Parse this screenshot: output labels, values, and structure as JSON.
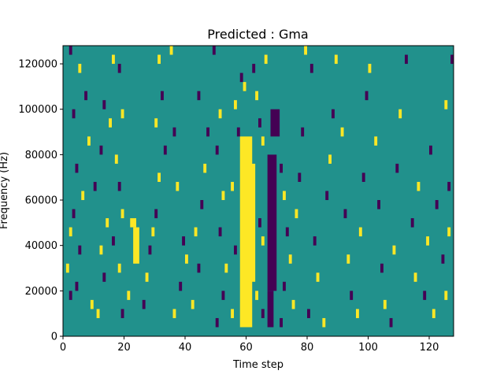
{
  "chart_data": {
    "type": "heatmap",
    "title": "Predicted : Gma",
    "xlabel": "Time step",
    "ylabel": "Frequency (Hz)",
    "xlim": [
      0,
      128
    ],
    "ylim": [
      0,
      128000
    ],
    "x_ticks": [
      0,
      20,
      40,
      60,
      80,
      100,
      120
    ],
    "x_tick_labels": [
      "0",
      "20",
      "40",
      "60",
      "80",
      "100",
      "120"
    ],
    "y_ticks": [
      0,
      20000,
      40000,
      60000,
      80000,
      100000,
      120000
    ],
    "y_tick_labels": [
      "0",
      "20000",
      "40000",
      "60000",
      "80000",
      "100000",
      "120000"
    ],
    "grid": false,
    "colormap": "viridis",
    "colors": {
      "low": "#440154",
      "mid": "#21918c",
      "high": "#fde725",
      "frame": "#000000"
    },
    "background_value": "mid",
    "bin_height_hz": 4000,
    "bands": [
      {
        "value": "high",
        "x_start": 58,
        "x_end": 62,
        "y_start": 4000,
        "y_end": 88000
      },
      {
        "value": "high",
        "x_start": 60,
        "x_end": 63,
        "y_start": 24000,
        "y_end": 76000
      },
      {
        "value": "low",
        "x_start": 67,
        "x_end": 70,
        "y_start": 20000,
        "y_end": 80000
      },
      {
        "value": "low",
        "x_start": 67,
        "x_end": 69,
        "y_start": 4000,
        "y_end": 20000
      },
      {
        "value": "low",
        "x_start": 68,
        "x_end": 71,
        "y_start": 88000,
        "y_end": 100000
      },
      {
        "value": "high",
        "x_start": 23,
        "x_end": 25,
        "y_start": 32000,
        "y_end": 48000
      },
      {
        "value": "high",
        "x_start": 22,
        "x_end": 24,
        "y_start": 48000,
        "y_end": 52000
      }
    ],
    "cells": [
      {
        "x": 2,
        "y": 124000,
        "v": "low"
      },
      {
        "x": 5,
        "y": 116000,
        "v": "high"
      },
      {
        "x": 3,
        "y": 96000,
        "v": "low"
      },
      {
        "x": 7,
        "y": 104000,
        "v": "low"
      },
      {
        "x": 8,
        "y": 84000,
        "v": "high"
      },
      {
        "x": 4,
        "y": 72000,
        "v": "low"
      },
      {
        "x": 6,
        "y": 60000,
        "v": "high"
      },
      {
        "x": 3,
        "y": 52000,
        "v": "low"
      },
      {
        "x": 2,
        "y": 44000,
        "v": "high"
      },
      {
        "x": 5,
        "y": 36000,
        "v": "low"
      },
      {
        "x": 1,
        "y": 28000,
        "v": "high"
      },
      {
        "x": 4,
        "y": 20000,
        "v": "low"
      },
      {
        "x": 2,
        "y": 16000,
        "v": "low"
      },
      {
        "x": 9,
        "y": 12000,
        "v": "high"
      },
      {
        "x": 11,
        "y": 8000,
        "v": "high"
      },
      {
        "x": 13,
        "y": 24000,
        "v": "low"
      },
      {
        "x": 12,
        "y": 36000,
        "v": "high"
      },
      {
        "x": 14,
        "y": 48000,
        "v": "high"
      },
      {
        "x": 10,
        "y": 64000,
        "v": "low"
      },
      {
        "x": 12,
        "y": 80000,
        "v": "low"
      },
      {
        "x": 15,
        "y": 92000,
        "v": "high"
      },
      {
        "x": 13,
        "y": 100000,
        "v": "low"
      },
      {
        "x": 16,
        "y": 120000,
        "v": "high"
      },
      {
        "x": 18,
        "y": 116000,
        "v": "low"
      },
      {
        "x": 19,
        "y": 96000,
        "v": "high"
      },
      {
        "x": 17,
        "y": 76000,
        "v": "high"
      },
      {
        "x": 18,
        "y": 64000,
        "v": "low"
      },
      {
        "x": 19,
        "y": 52000,
        "v": "high"
      },
      {
        "x": 16,
        "y": 40000,
        "v": "low"
      },
      {
        "x": 18,
        "y": 28000,
        "v": "high"
      },
      {
        "x": 19,
        "y": 8000,
        "v": "low"
      },
      {
        "x": 21,
        "y": 16000,
        "v": "high"
      },
      {
        "x": 26,
        "y": 12000,
        "v": "low"
      },
      {
        "x": 27,
        "y": 24000,
        "v": "high"
      },
      {
        "x": 28,
        "y": 36000,
        "v": "low"
      },
      {
        "x": 29,
        "y": 44000,
        "v": "high"
      },
      {
        "x": 30,
        "y": 52000,
        "v": "low"
      },
      {
        "x": 31,
        "y": 68000,
        "v": "high"
      },
      {
        "x": 33,
        "y": 80000,
        "v": "low"
      },
      {
        "x": 30,
        "y": 92000,
        "v": "high"
      },
      {
        "x": 32,
        "y": 104000,
        "v": "low"
      },
      {
        "x": 31,
        "y": 120000,
        "v": "high"
      },
      {
        "x": 35,
        "y": 124000,
        "v": "high"
      },
      {
        "x": 36,
        "y": 88000,
        "v": "low"
      },
      {
        "x": 37,
        "y": 64000,
        "v": "high"
      },
      {
        "x": 39,
        "y": 40000,
        "v": "low"
      },
      {
        "x": 40,
        "y": 32000,
        "v": "high"
      },
      {
        "x": 38,
        "y": 20000,
        "v": "low"
      },
      {
        "x": 36,
        "y": 8000,
        "v": "high"
      },
      {
        "x": 42,
        "y": 12000,
        "v": "high"
      },
      {
        "x": 44,
        "y": 28000,
        "v": "low"
      },
      {
        "x": 43,
        "y": 44000,
        "v": "high"
      },
      {
        "x": 45,
        "y": 56000,
        "v": "low"
      },
      {
        "x": 46,
        "y": 72000,
        "v": "high"
      },
      {
        "x": 47,
        "y": 88000,
        "v": "low"
      },
      {
        "x": 44,
        "y": 104000,
        "v": "low"
      },
      {
        "x": 49,
        "y": 124000,
        "v": "low"
      },
      {
        "x": 51,
        "y": 96000,
        "v": "high"
      },
      {
        "x": 50,
        "y": 80000,
        "v": "low"
      },
      {
        "x": 52,
        "y": 60000,
        "v": "high"
      },
      {
        "x": 51,
        "y": 44000,
        "v": "low"
      },
      {
        "x": 53,
        "y": 28000,
        "v": "high"
      },
      {
        "x": 52,
        "y": 16000,
        "v": "low"
      },
      {
        "x": 50,
        "y": 4000,
        "v": "low"
      },
      {
        "x": 55,
        "y": 8000,
        "v": "high"
      },
      {
        "x": 56,
        "y": 36000,
        "v": "low"
      },
      {
        "x": 55,
        "y": 64000,
        "v": "high"
      },
      {
        "x": 57,
        "y": 88000,
        "v": "low"
      },
      {
        "x": 56,
        "y": 100000,
        "v": "high"
      },
      {
        "x": 58,
        "y": 112000,
        "v": "low"
      },
      {
        "x": 59,
        "y": 108000,
        "v": "high"
      },
      {
        "x": 62,
        "y": 116000,
        "v": "low"
      },
      {
        "x": 63,
        "y": 104000,
        "v": "high"
      },
      {
        "x": 64,
        "y": 92000,
        "v": "low"
      },
      {
        "x": 65,
        "y": 84000,
        "v": "high"
      },
      {
        "x": 64,
        "y": 48000,
        "v": "low"
      },
      {
        "x": 65,
        "y": 40000,
        "v": "high"
      },
      {
        "x": 63,
        "y": 16000,
        "v": "high"
      },
      {
        "x": 65,
        "y": 8000,
        "v": "low"
      },
      {
        "x": 66,
        "y": 120000,
        "v": "high"
      },
      {
        "x": 71,
        "y": 72000,
        "v": "low"
      },
      {
        "x": 72,
        "y": 60000,
        "v": "high"
      },
      {
        "x": 73,
        "y": 44000,
        "v": "low"
      },
      {
        "x": 74,
        "y": 32000,
        "v": "high"
      },
      {
        "x": 72,
        "y": 20000,
        "v": "low"
      },
      {
        "x": 71,
        "y": 4000,
        "v": "low"
      },
      {
        "x": 75,
        "y": 12000,
        "v": "high"
      },
      {
        "x": 76,
        "y": 52000,
        "v": "high"
      },
      {
        "x": 77,
        "y": 68000,
        "v": "low"
      },
      {
        "x": 78,
        "y": 88000,
        "v": "low"
      },
      {
        "x": 79,
        "y": 124000,
        "v": "high"
      },
      {
        "x": 81,
        "y": 116000,
        "v": "low"
      },
      {
        "x": 82,
        "y": 40000,
        "v": "low"
      },
      {
        "x": 83,
        "y": 24000,
        "v": "high"
      },
      {
        "x": 80,
        "y": 8000,
        "v": "low"
      },
      {
        "x": 85,
        "y": 4000,
        "v": "high"
      },
      {
        "x": 86,
        "y": 60000,
        "v": "low"
      },
      {
        "x": 87,
        "y": 76000,
        "v": "high"
      },
      {
        "x": 88,
        "y": 96000,
        "v": "low"
      },
      {
        "x": 89,
        "y": 120000,
        "v": "high"
      },
      {
        "x": 91,
        "y": 88000,
        "v": "high"
      },
      {
        "x": 92,
        "y": 52000,
        "v": "low"
      },
      {
        "x": 93,
        "y": 32000,
        "v": "high"
      },
      {
        "x": 94,
        "y": 16000,
        "v": "low"
      },
      {
        "x": 96,
        "y": 8000,
        "v": "high"
      },
      {
        "x": 97,
        "y": 44000,
        "v": "high"
      },
      {
        "x": 98,
        "y": 68000,
        "v": "low"
      },
      {
        "x": 99,
        "y": 104000,
        "v": "low"
      },
      {
        "x": 100,
        "y": 116000,
        "v": "high"
      },
      {
        "x": 102,
        "y": 84000,
        "v": "high"
      },
      {
        "x": 103,
        "y": 56000,
        "v": "low"
      },
      {
        "x": 104,
        "y": 28000,
        "v": "low"
      },
      {
        "x": 105,
        "y": 12000,
        "v": "high"
      },
      {
        "x": 107,
        "y": 4000,
        "v": "low"
      },
      {
        "x": 108,
        "y": 36000,
        "v": "high"
      },
      {
        "x": 109,
        "y": 72000,
        "v": "low"
      },
      {
        "x": 110,
        "y": 96000,
        "v": "high"
      },
      {
        "x": 112,
        "y": 120000,
        "v": "low"
      },
      {
        "x": 114,
        "y": 48000,
        "v": "low"
      },
      {
        "x": 115,
        "y": 24000,
        "v": "high"
      },
      {
        "x": 116,
        "y": 64000,
        "v": "high"
      },
      {
        "x": 118,
        "y": 16000,
        "v": "low"
      },
      {
        "x": 119,
        "y": 40000,
        "v": "high"
      },
      {
        "x": 120,
        "y": 80000,
        "v": "low"
      },
      {
        "x": 121,
        "y": 8000,
        "v": "high"
      },
      {
        "x": 122,
        "y": 56000,
        "v": "low"
      },
      {
        "x": 124,
        "y": 32000,
        "v": "low"
      },
      {
        "x": 125,
        "y": 100000,
        "v": "high"
      },
      {
        "x": 126,
        "y": 64000,
        "v": "low"
      },
      {
        "x": 127,
        "y": 120000,
        "v": "low"
      },
      {
        "x": 126,
        "y": 44000,
        "v": "high"
      },
      {
        "x": 125,
        "y": 16000,
        "v": "high"
      }
    ]
  }
}
